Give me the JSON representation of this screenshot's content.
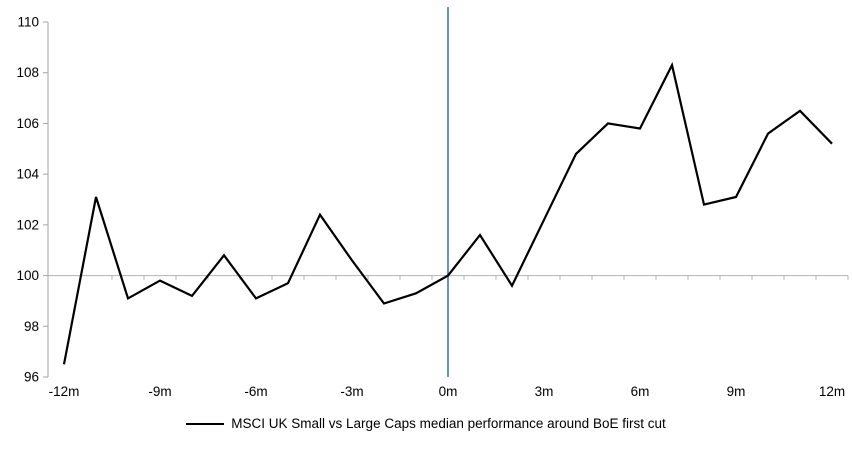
{
  "chart_data": {
    "type": "line",
    "x": [
      -12,
      -11,
      -10,
      -9,
      -8,
      -7,
      -6,
      -5,
      -4,
      -3,
      -2,
      -1,
      0,
      1,
      2,
      3,
      4,
      5,
      6,
      7,
      8,
      9,
      10,
      11,
      12
    ],
    "xtick_labels": [
      "-12m",
      "-9m",
      "-6m",
      "-3m",
      "0m",
      "3m",
      "6m",
      "9m",
      "12m"
    ],
    "xtick_positions": [
      -12,
      -9,
      -6,
      -3,
      0,
      3,
      6,
      9,
      12
    ],
    "series": [
      {
        "name": "MSCI UK Small vs Large Caps median performance around BoE first cut",
        "color": "#000000",
        "values": [
          96.5,
          103.1,
          99.1,
          99.8,
          99.2,
          100.8,
          99.1,
          99.7,
          102.4,
          100.6,
          98.9,
          99.3,
          100.0,
          101.6,
          99.6,
          102.2,
          104.8,
          106.0,
          105.8,
          108.3,
          102.8,
          103.1,
          105.6,
          106.5,
          105.2
        ]
      }
    ],
    "ylim": [
      96,
      110
    ],
    "ytick_step": 2,
    "ytick_labels": [
      "96",
      "98",
      "100",
      "102",
      "104",
      "106",
      "108",
      "110"
    ],
    "baseline": 100,
    "event_line": {
      "x": 0,
      "color": "#4f81bd"
    },
    "legend_position": "bottom",
    "grid": "off",
    "axis_color": "#a6a6a6",
    "baseline_color": "#b3b3b3",
    "background": "#ffffff"
  }
}
